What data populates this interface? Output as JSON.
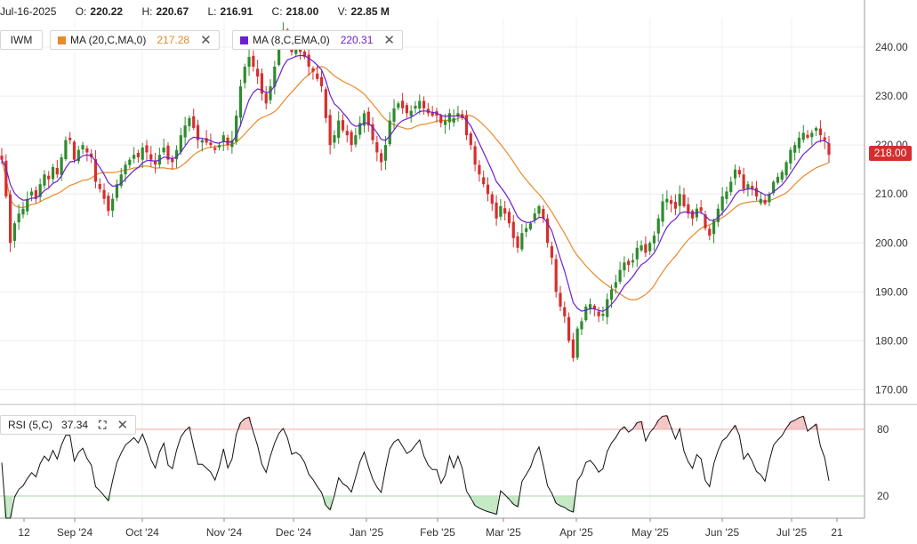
{
  "header": {
    "date": "Jul-16-2025",
    "open_label": "O:",
    "open": "220.22",
    "high_label": "H:",
    "high": "220.67",
    "low_label": "L:",
    "low": "216.91",
    "close_label": "C:",
    "close": "218.00",
    "volume_label": "V:",
    "volume": "22.85 M"
  },
  "legend": {
    "symbol": "IWM",
    "ma20": {
      "label": "MA (20,C,MA,0)",
      "value": "217.28",
      "color": "#e8892a"
    },
    "ema8": {
      "label": "MA (8,C,EMA,0)",
      "value": "220.31",
      "color": "#6a1fd1"
    }
  },
  "rsi_legend": {
    "label": "RSI (5,C)",
    "value": "37.34"
  },
  "last_price_tag": "218.00",
  "colors": {
    "up": "#2e8b2e",
    "down": "#d62e2e",
    "grid": "#ececec",
    "rsi_line": "#111111"
  },
  "chart_data": {
    "type": "candlestick",
    "title": "",
    "price_axis": {
      "ticks": [
        "240.00",
        "230.00",
        "220.00",
        "210.00",
        "200.00",
        "190.00",
        "180.00",
        "170.00"
      ],
      "ylim": [
        167,
        246
      ]
    },
    "rsi_axis": {
      "ticks": [
        "80",
        "20"
      ],
      "ylim": [
        0,
        100
      ],
      "overbought": 80,
      "oversold": 20
    },
    "x_labels": [
      "12",
      "Sep '24",
      "Oct '24",
      "Nov '24",
      "Dec '24",
      "Jan '25",
      "Feb '25",
      "Mar '25",
      "Apr '25",
      "May '25",
      "Jun '25",
      "Jul '25",
      "21"
    ],
    "closes": [
      217.0,
      209.5,
      200.0,
      204.0,
      206.0,
      207.0,
      209.0,
      210.5,
      209.0,
      212.0,
      214.0,
      213.0,
      215.5,
      214.0,
      217.5,
      221.0,
      221.0,
      217.0,
      219.0,
      220.0,
      218.5,
      217.5,
      212.5,
      211.0,
      209.0,
      206.5,
      209.0,
      212.0,
      214.0,
      216.0,
      217.0,
      218.0,
      217.5,
      219.5,
      218.5,
      217.0,
      216.0,
      218.0,
      219.5,
      217.0,
      216.5,
      219.0,
      222.0,
      224.0,
      225.5,
      223.5,
      221.0,
      221.0,
      220.5,
      220.0,
      219.0,
      220.0,
      222.0,
      220.0,
      221.0,
      226.0,
      232.0,
      236.0,
      238.0,
      236.0,
      234.0,
      230.5,
      228.5,
      232.0,
      236.0,
      240.5,
      243.5,
      242.0,
      239.0,
      239.5,
      239.0,
      238.0,
      236.0,
      235.0,
      233.5,
      232.0,
      225.5,
      220.0,
      222.0,
      225.0,
      223.0,
      222.0,
      220.0,
      222.0,
      224.5,
      226.5,
      224.0,
      221.0,
      218.5,
      216.5,
      220.0,
      225.0,
      227.5,
      228.5,
      227.5,
      226.5,
      227.0,
      228.0,
      229.0,
      227.5,
      226.5,
      226.0,
      226.0,
      224.5,
      225.0,
      226.5,
      225.5,
      226.5,
      225.5,
      222.0,
      220.0,
      216.0,
      214.0,
      212.0,
      210.0,
      208.0,
      205.0,
      207.5,
      206.0,
      204.0,
      201.0,
      199.0,
      202.0,
      203.0,
      204.0,
      206.0,
      207.5,
      205.0,
      200.0,
      197.0,
      190.0,
      187.0,
      185.0,
      180.0,
      176.5,
      182.5,
      184.0,
      187.0,
      187.5,
      186.5,
      185.0,
      185.5,
      188.5,
      190.5,
      192.0,
      194.5,
      196.0,
      195.5,
      196.5,
      199.0,
      199.5,
      198.0,
      200.0,
      201.5,
      205.0,
      208.5,
      209.0,
      208.0,
      207.0,
      210.0,
      207.5,
      206.0,
      205.0,
      207.0,
      206.5,
      203.0,
      201.5,
      204.5,
      207.0,
      209.5,
      210.5,
      212.5,
      215.0,
      214.0,
      211.0,
      212.0,
      211.0,
      209.5,
      209.0,
      208.0,
      210.0,
      212.5,
      213.5,
      214.5,
      216.5,
      219.0,
      220.0,
      221.5,
      222.5,
      221.5,
      222.5,
      223.5,
      222.0,
      221.0,
      218.0
    ]
  }
}
